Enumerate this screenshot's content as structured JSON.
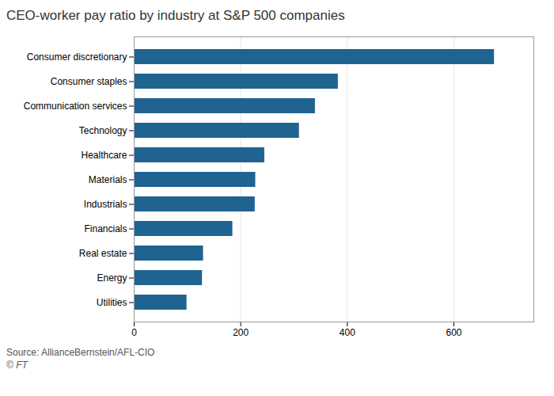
{
  "chart_data": {
    "type": "bar",
    "orientation": "horizontal",
    "title": "CEO-worker pay ratio by industry at S&P 500 companies",
    "categories": [
      "Consumer discretionary",
      "Consumer staples",
      "Communication services",
      "Technology",
      "Healthcare",
      "Materials",
      "Industrials",
      "Financials",
      "Real estate",
      "Energy",
      "Utilities"
    ],
    "values": [
      676,
      383,
      340,
      310,
      245,
      228,
      227,
      185,
      130,
      128,
      99
    ],
    "color": "#1f6391",
    "xlim": [
      0,
      750
    ],
    "xticks": [
      0,
      200,
      400,
      600
    ],
    "grid": true,
    "annotations": [
      "Source: AllianceBernstein/AFL-CIO",
      "© FT"
    ]
  }
}
